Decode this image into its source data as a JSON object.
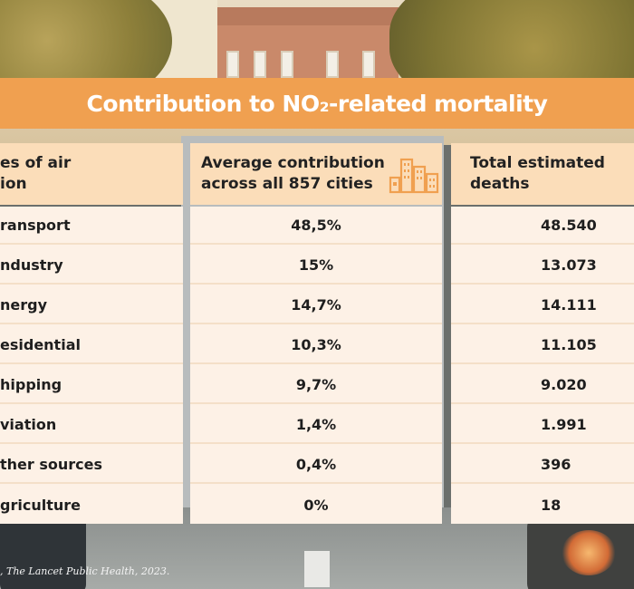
{
  "banner": {
    "title": "Contribution to NO₂-related mortality"
  },
  "table": {
    "headers": {
      "source": "es of air\nion",
      "average": "Average contribution\nacross all 857 cities",
      "total": "Total estimated\ndeaths"
    },
    "rows": [
      {
        "source": "ransport",
        "average": "48,5%",
        "total": "48.540"
      },
      {
        "source": "ndustry",
        "average": "15%",
        "total": "13.073"
      },
      {
        "source": "nergy",
        "average": "14,7%",
        "total": "14.111"
      },
      {
        "source": "esidential",
        "average": "10,3%",
        "total": "11.105"
      },
      {
        "source": "hipping",
        "average": "9,7%",
        "total": "9.020"
      },
      {
        "source": "viation",
        "average": "1,4%",
        "total": "1.991"
      },
      {
        "source": "ther sources",
        "average": "0,4%",
        "total": "396"
      },
      {
        "source": "griculture",
        "average": "0%",
        "total": "18"
      }
    ]
  },
  "footer": {
    "source_note": ", The Lancet Public Health, 2023."
  },
  "colors": {
    "banner": "#f0a050",
    "header_cell": "#fbddb9",
    "body_cell": "#fdf1e6",
    "icon": "#f0a050"
  },
  "icons": {
    "header_icon": "city-buildings-icon"
  }
}
